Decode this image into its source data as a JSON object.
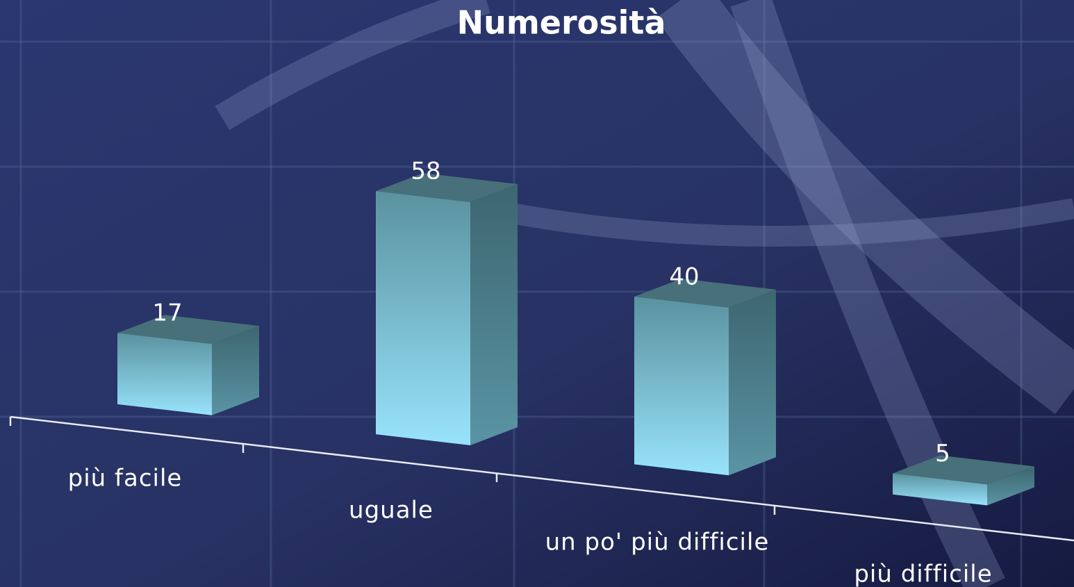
{
  "chart_data": {
    "type": "bar",
    "title": "Numerosità",
    "categories": [
      "più facile",
      "uguale",
      "un po' più difficile",
      "più difficile"
    ],
    "values": [
      17,
      58,
      40,
      5
    ],
    "color": "#8fd8f2"
  }
}
